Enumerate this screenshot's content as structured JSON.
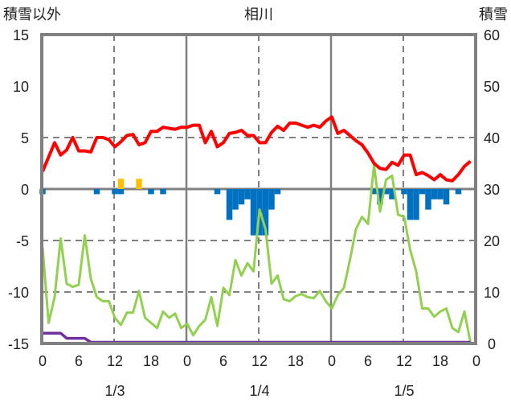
{
  "chart_data": {
    "type": "line",
    "title": "相川",
    "left_axis_label": "積雪以外",
    "right_axis_label": "積雪",
    "left_ylim": [
      -15,
      15
    ],
    "left_ticks": [
      15,
      10,
      5,
      0,
      -5,
      -10,
      -15
    ],
    "right_ylim": [
      0,
      60
    ],
    "right_ticks": [
      60,
      50,
      40,
      30,
      20,
      10,
      0
    ],
    "x_hours_range": [
      0,
      72
    ],
    "x_tick_labels": [
      "0",
      "6",
      "12",
      "18",
      "0",
      "6",
      "12",
      "18",
      "0",
      "6",
      "12",
      "18",
      "0"
    ],
    "date_labels": [
      {
        "hour": 12,
        "label": "1/3"
      },
      {
        "hour": 36,
        "label": "1/4"
      },
      {
        "hour": 60,
        "label": "1/5"
      }
    ],
    "grid": "dashed at 12h and 5/-5/-10, solid at 0h and 0",
    "colors": {
      "temperature": "#ff0000",
      "green": "#92d050",
      "snow_depth": "#7030a0",
      "bar_negative": "#0070c0",
      "bar_positive": "#ffc000",
      "frame": "#808080"
    },
    "series": [
      {
        "name": "temperature",
        "axis": "left",
        "values": [
          1.7,
          3.1,
          4.5,
          3.3,
          3.8,
          5.0,
          3.7,
          3.7,
          3.6,
          5.0,
          5.0,
          4.8,
          4.1,
          4.6,
          5.2,
          5.3,
          4.3,
          4.5,
          5.6,
          5.6,
          6.0,
          5.9,
          5.8,
          6.0,
          6.0,
          6.2,
          6.2,
          4.5,
          5.6,
          4.1,
          4.5,
          5.4,
          5.5,
          5.7,
          5.2,
          5.2,
          4.5,
          4.5,
          5.5,
          6.1,
          5.7,
          6.4,
          6.4,
          6.2,
          6.0,
          6.2,
          6.0,
          6.6,
          7.0,
          5.4,
          5.7,
          5.2,
          4.7,
          4.3,
          3.5,
          2.5,
          2.0,
          1.9,
          2.6,
          2.3,
          3.3,
          3.3,
          1.4,
          1.6,
          1.3,
          0.9,
          1.4,
          0.9,
          0.8,
          1.4,
          2.2,
          2.7
        ]
      },
      {
        "name": "green",
        "axis": "left",
        "values": [
          -5.7,
          -13.0,
          -10.5,
          -4.8,
          -9.2,
          -9.5,
          -9.3,
          -4.5,
          -8.7,
          -10.5,
          -10.9,
          -10.9,
          -12.5,
          -13.2,
          -12.0,
          -12.0,
          -9.9,
          -12.5,
          -13.0,
          -13.5,
          -11.9,
          -12.5,
          -12.1,
          -13.5,
          -13.1,
          -14.2,
          -13.3,
          -12.7,
          -10.5,
          -13.3,
          -9.6,
          -10.3,
          -6.9,
          -8.4,
          -7.2,
          -8.0,
          -2.0,
          -3.9,
          -9.2,
          -8.4,
          -10.7,
          -10.9,
          -10.4,
          -10.2,
          -10.5,
          -10.6,
          -9.9,
          -10.9,
          -11.6,
          -10.3,
          -9.6,
          -6.9,
          -3.9,
          -2.7,
          -3.4,
          2.3,
          -2.2,
          0.9,
          1.3,
          -2.5,
          -2.7,
          -5.9,
          -8.0,
          -11.6,
          -11.6,
          -12.4,
          -11.9,
          -11.6,
          -13.5,
          -13.9,
          -11.9,
          -15.0
        ]
      },
      {
        "name": "snow_depth",
        "axis": "right",
        "values": [
          2,
          2,
          2,
          2,
          1,
          1,
          1,
          1,
          0,
          0,
          0,
          0,
          0,
          0,
          0,
          0,
          0,
          0,
          0,
          0,
          0,
          0,
          0,
          0,
          0,
          0,
          0,
          0,
          0,
          0,
          0,
          0,
          0,
          0,
          0,
          0,
          0,
          0,
          0,
          0,
          0,
          0,
          0,
          0,
          0,
          0,
          0,
          0,
          0,
          0,
          0,
          0,
          0,
          0,
          0,
          0,
          0,
          0,
          0,
          0,
          0,
          0,
          0,
          0,
          0,
          0,
          0,
          0,
          0,
          0,
          0,
          0
        ]
      },
      {
        "name": "bars",
        "axis": "left",
        "points": [
          [
            0,
            -0.5
          ],
          [
            9,
            -0.5
          ],
          [
            12,
            -0.5
          ],
          [
            13,
            -0.5
          ],
          [
            13,
            1.0
          ],
          [
            16,
            1.0
          ],
          [
            18,
            -0.5
          ],
          [
            20,
            -0.5
          ],
          [
            29,
            -0.5
          ],
          [
            31,
            -3.0
          ],
          [
            32,
            -2.0
          ],
          [
            33,
            -1.5
          ],
          [
            34,
            -1.0
          ],
          [
            35,
            -4.5
          ],
          [
            36,
            -4.5
          ],
          [
            37,
            -4.5
          ],
          [
            38,
            -2.0
          ],
          [
            39,
            -0.5
          ],
          [
            55,
            -0.5
          ],
          [
            56,
            -1.5
          ],
          [
            57,
            -0.5
          ],
          [
            58,
            -1.0
          ],
          [
            60,
            -0.5
          ],
          [
            61,
            -3.0
          ],
          [
            62,
            -3.0
          ],
          [
            63,
            -0.5
          ],
          [
            64,
            -2.0
          ],
          [
            65,
            -1.0
          ],
          [
            66,
            -1.0
          ],
          [
            67,
            -1.5
          ],
          [
            69,
            -0.5
          ]
        ]
      }
    ]
  }
}
